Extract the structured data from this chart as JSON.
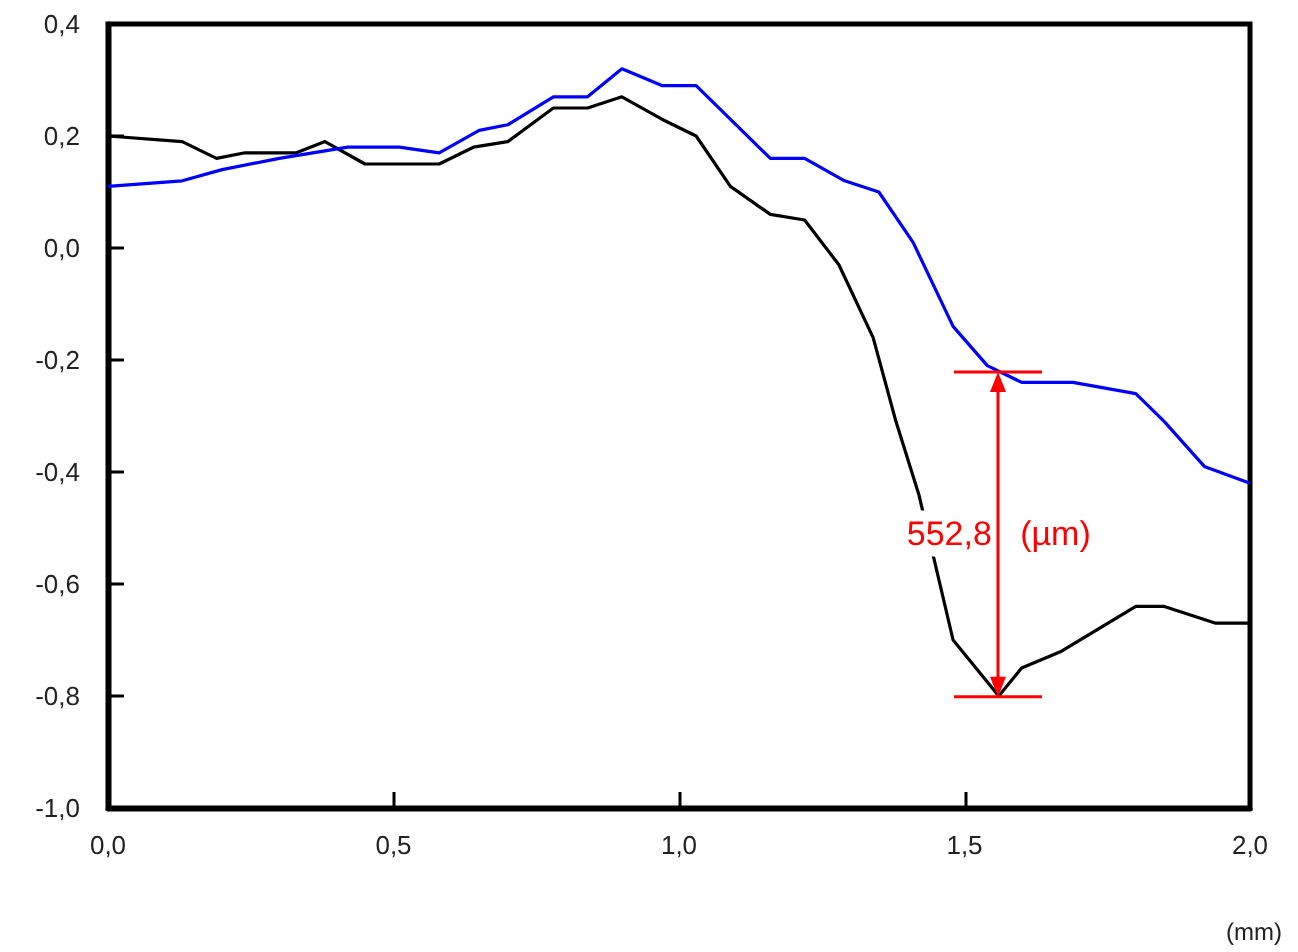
{
  "chart_data": {
    "type": "line",
    "xlabel": "(mm)",
    "xlim": [
      0,
      2
    ],
    "xticks": [
      {
        "value": 0,
        "label": "0,0"
      },
      {
        "value": 0.5,
        "label": "0,5"
      },
      {
        "value": 1,
        "label": "1,0"
      },
      {
        "value": 1.5,
        "label": "1,5"
      },
      {
        "value": 2,
        "label": "2,0"
      }
    ],
    "ylim": [
      -1,
      0.4
    ],
    "yticks": [
      {
        "value": -1,
        "label": "-1,0"
      },
      {
        "value": -0.8,
        "label": "-0,8"
      },
      {
        "value": -0.6,
        "label": "-0,6"
      },
      {
        "value": -0.4,
        "label": "-0,4"
      },
      {
        "value": -0.2,
        "label": "-0,2"
      },
      {
        "value": 0,
        "label": "0,0"
      },
      {
        "value": 0.2,
        "label": "0,2"
      },
      {
        "value": 0.4,
        "label": "0,4"
      }
    ],
    "marker": "none",
    "line_style": "solid",
    "series": [
      {
        "color": "#000000",
        "x": [
          0,
          0.13,
          0.19,
          0.24,
          0.33,
          0.38,
          0.45,
          0.58,
          0.64,
          0.7,
          0.78,
          0.84,
          0.9,
          0.97,
          1.03,
          1.09,
          1.16,
          1.22,
          1.28,
          1.34,
          1.38,
          1.42,
          1.48,
          1.56,
          1.6,
          1.67,
          1.8,
          1.85,
          1.94,
          2.0
        ],
        "values": [
          0.2,
          0.19,
          0.16,
          0.17,
          0.17,
          0.19,
          0.15,
          0.15,
          0.18,
          0.19,
          0.25,
          0.25,
          0.27,
          0.23,
          0.2,
          0.11,
          0.06,
          0.05,
          -0.03,
          -0.16,
          -0.31,
          -0.44,
          -0.7,
          -0.8,
          -0.75,
          -0.72,
          -0.64,
          -0.64,
          -0.67,
          -0.67
        ]
      },
      {
        "color": "#0000ff",
        "x": [
          0,
          0.13,
          0.2,
          0.3,
          0.42,
          0.51,
          0.58,
          0.65,
          0.7,
          0.78,
          0.84,
          0.9,
          0.97,
          1.03,
          1.08,
          1.16,
          1.22,
          1.29,
          1.35,
          1.41,
          1.48,
          1.54,
          1.6,
          1.69,
          1.8,
          1.85,
          1.92,
          2.0
        ],
        "values": [
          0.11,
          0.12,
          0.14,
          0.16,
          0.18,
          0.18,
          0.17,
          0.21,
          0.22,
          0.27,
          0.27,
          0.32,
          0.29,
          0.29,
          0.24,
          0.16,
          0.16,
          0.12,
          0.1,
          0.01,
          -0.14,
          -0.21,
          -0.24,
          -0.24,
          -0.26,
          -0.31,
          -0.39,
          -0.42
        ]
      }
    ],
    "annotations": [
      "552,8   (µm)"
    ]
  }
}
